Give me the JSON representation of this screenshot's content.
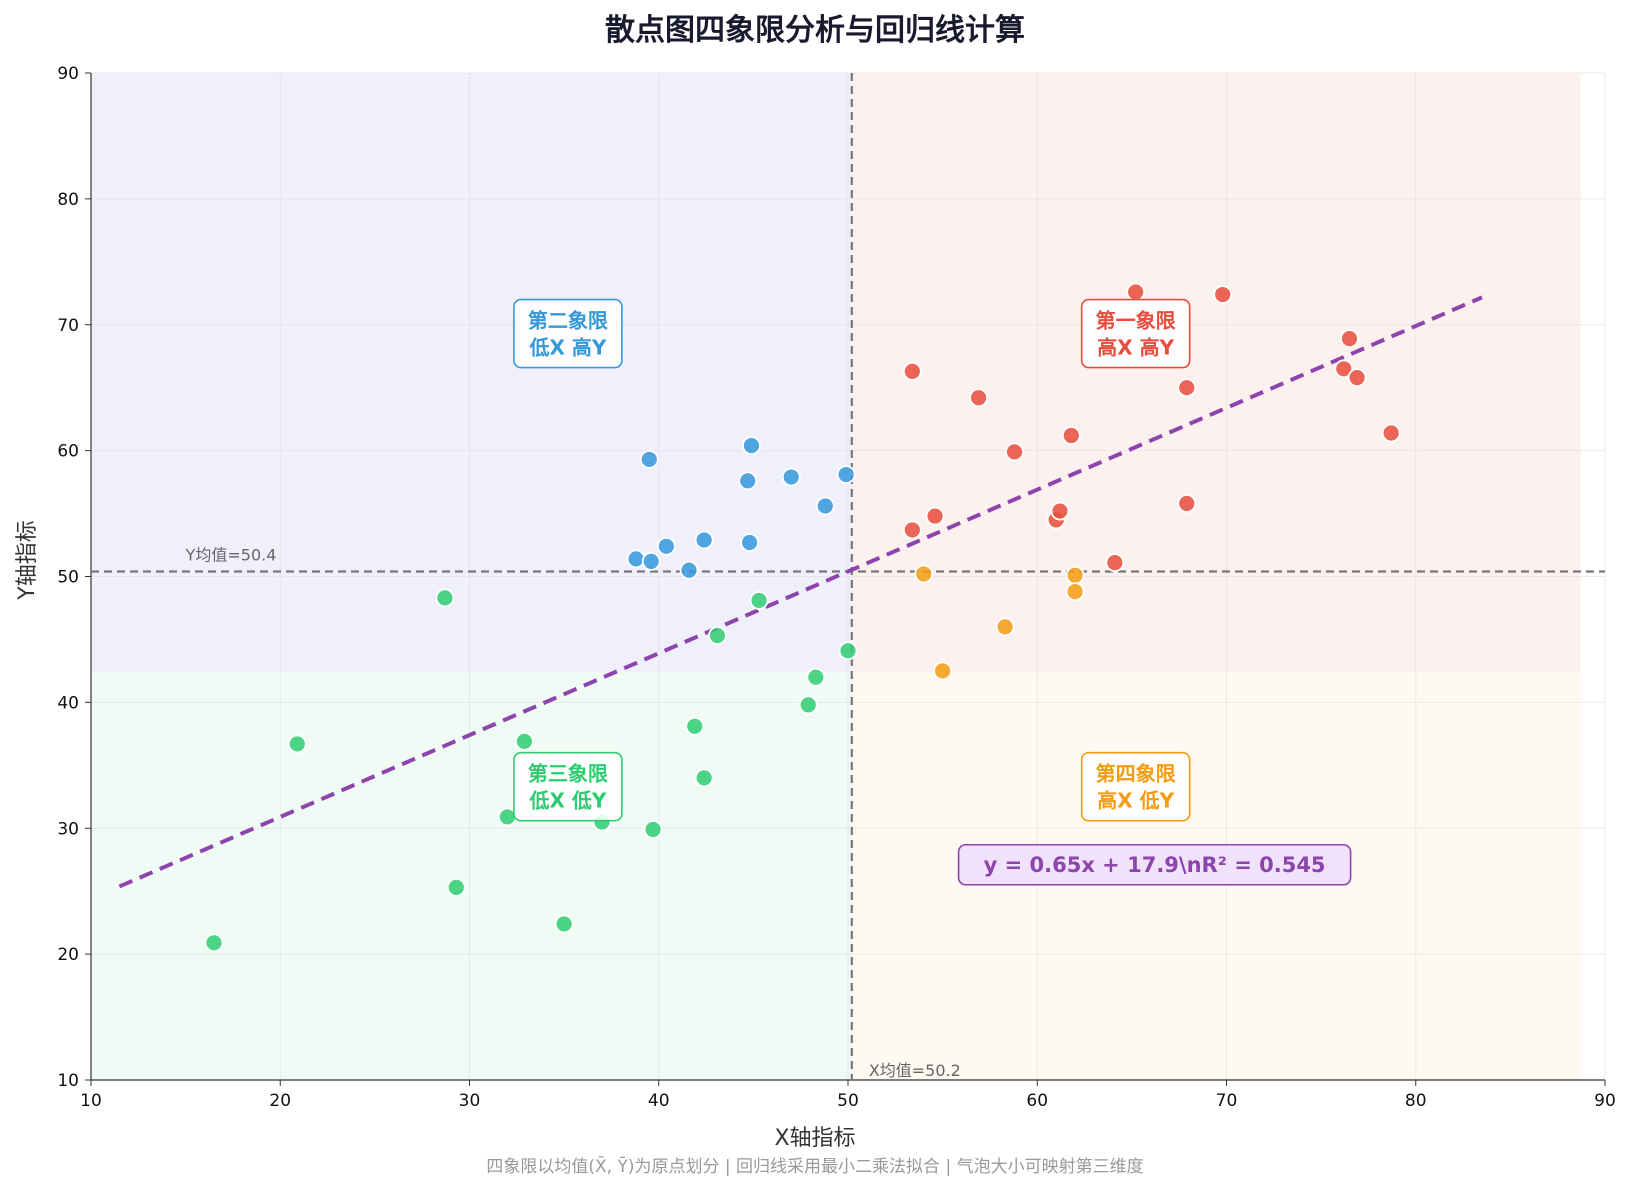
{
  "chart_data": {
    "type": "scatter",
    "title": "散点图四象限分析与回归线计算",
    "xlabel": "X轴指标",
    "ylabel": "Y轴指标",
    "xlim": [
      10,
      90
    ],
    "ylim": [
      10,
      90
    ],
    "xticks": [
      "10",
      "20",
      "30",
      "40",
      "50",
      "60",
      "70",
      "80",
      "90"
    ],
    "yticks": [
      "10",
      "20",
      "30",
      "40",
      "50",
      "60",
      "70",
      "80",
      "90"
    ],
    "grid": true,
    "x_mean": 50.2,
    "y_mean": 50.4,
    "x_mean_label": "X均值=50.2",
    "y_mean_label": "Y均值=50.4",
    "quadrant_labels": {
      "q1": [
        "第一象限",
        "高X 高Y"
      ],
      "q2": [
        "第二象限",
        "低X 高Y"
      ],
      "q3": [
        "第三象限",
        "低X 低Y"
      ],
      "q4": [
        "第四象限",
        "高X 低Y"
      ]
    },
    "colors": {
      "q1": "#e74c3c",
      "q2": "#3498db",
      "q3": "#2ecc71",
      "q4": "#f39c12",
      "regression": "#8e44ad"
    },
    "regression": {
      "slope": 0.65,
      "intercept": 17.9,
      "x_range": [
        11.5,
        83.5
      ],
      "equation_text": "y = 0.65x + 17.9\\nR² = 0.545"
    },
    "series": [
      {
        "name": "第一象限",
        "points": [
          [
            53.4,
            66.3
          ],
          [
            56.9,
            64.2
          ],
          [
            58.8,
            59.9
          ],
          [
            61.8,
            61.2
          ],
          [
            65.2,
            72.6
          ],
          [
            69.8,
            72.4
          ],
          [
            76.5,
            68.9
          ],
          [
            76.2,
            66.5
          ],
          [
            76.9,
            65.8
          ],
          [
            67.9,
            65.0
          ],
          [
            78.7,
            61.4
          ],
          [
            53.4,
            53.7
          ],
          [
            54.6,
            54.8
          ],
          [
            61.0,
            54.5
          ],
          [
            61.2,
            55.2
          ],
          [
            67.9,
            55.8
          ],
          [
            64.1,
            51.1
          ]
        ]
      },
      {
        "name": "第二象限",
        "points": [
          [
            39.5,
            59.3
          ],
          [
            44.9,
            60.4
          ],
          [
            44.7,
            57.6
          ],
          [
            47.0,
            57.9
          ],
          [
            49.9,
            58.1
          ],
          [
            48.8,
            55.6
          ],
          [
            42.4,
            52.9
          ],
          [
            40.4,
            52.4
          ],
          [
            38.8,
            51.4
          ],
          [
            39.6,
            51.2
          ],
          [
            44.8,
            52.7
          ],
          [
            41.6,
            50.5
          ]
        ]
      },
      {
        "name": "第三象限",
        "points": [
          [
            28.7,
            48.3
          ],
          [
            45.3,
            48.1
          ],
          [
            43.1,
            45.3
          ],
          [
            50.0,
            44.1
          ],
          [
            48.3,
            42.0
          ],
          [
            47.9,
            39.8
          ],
          [
            41.9,
            38.1
          ],
          [
            20.9,
            36.7
          ],
          [
            32.9,
            36.9
          ],
          [
            42.4,
            34.0
          ],
          [
            32.0,
            30.9
          ],
          [
            37.0,
            30.5
          ],
          [
            39.7,
            29.9
          ],
          [
            29.3,
            25.3
          ],
          [
            35.0,
            22.4
          ],
          [
            16.5,
            20.9
          ]
        ]
      },
      {
        "name": "第四象限",
        "points": [
          [
            54.0,
            50.2
          ],
          [
            62.0,
            50.1
          ],
          [
            62.0,
            48.8
          ],
          [
            58.3,
            46.0
          ],
          [
            55.0,
            42.5
          ]
        ]
      }
    ]
  },
  "footnote": "四象限以均值(X̄, Ȳ)为原点划分 | 回归线采用最小二乘法拟合 | 气泡大小可映射第三维度"
}
